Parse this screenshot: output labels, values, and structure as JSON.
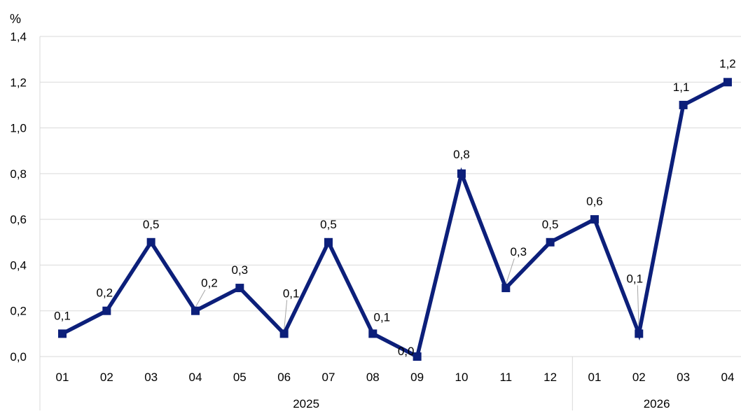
{
  "chart_data": {
    "type": "line",
    "title": "",
    "ylabel": "%",
    "xlabel": "",
    "ylim": [
      0,
      1.4
    ],
    "y_ticks": [
      "0,0",
      "0,2",
      "0,4",
      "0,6",
      "0,8",
      "1,0",
      "1,2",
      "1,4"
    ],
    "y_tick_values": [
      0,
      0.2,
      0.4,
      0.6,
      0.8,
      1.0,
      1.2,
      1.4
    ],
    "categories": [
      "01",
      "02",
      "03",
      "04",
      "05",
      "06",
      "07",
      "08",
      "09",
      "10",
      "11",
      "12",
      "01",
      "02",
      "03",
      "04"
    ],
    "groups": [
      {
        "label": "2025",
        "count": 12
      },
      {
        "label": "2026",
        "count": 4
      }
    ],
    "grid": true,
    "legend": "none",
    "series": [
      {
        "values": [
          0.1,
          0.2,
          0.5,
          0.2,
          0.3,
          0.1,
          0.5,
          0.1,
          0.0,
          0.8,
          0.3,
          0.5,
          0.6,
          0.1,
          1.1,
          1.2
        ],
        "labels": [
          "0,1",
          "0,2",
          "0,5",
          "0,2",
          "0,3",
          "0,1",
          "0,5",
          "0,1",
          "0,0",
          "0,8",
          "0,3",
          "0,5",
          "0,6",
          "0,1",
          "1,1",
          "1,2"
        ],
        "color": "#0c1f7a"
      }
    ],
    "colors": {
      "line": "#0c1f7a",
      "grid": "#d9d9d9",
      "leader": "#a6a6a6"
    }
  }
}
